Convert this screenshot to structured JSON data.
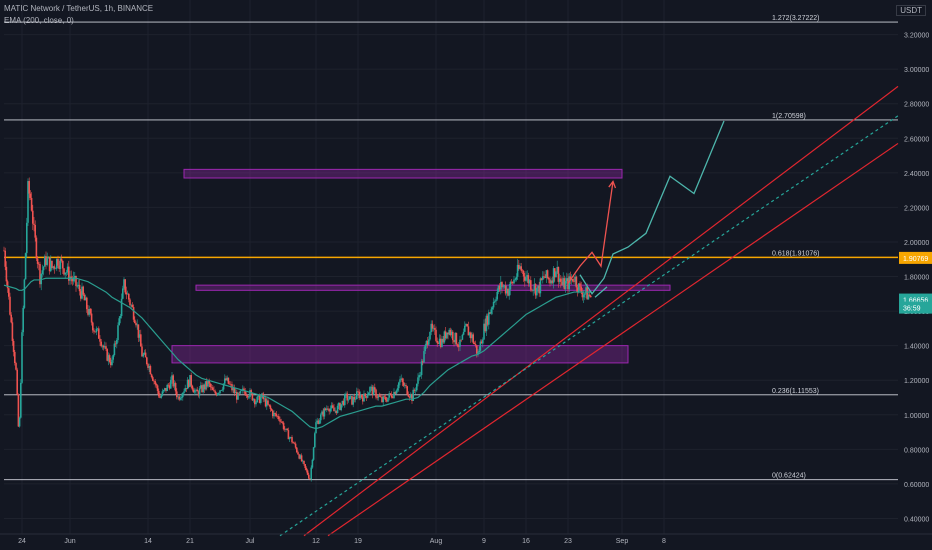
{
  "header": {
    "symbol": "MATIC Network / TetherUS, 1h, BINANCE",
    "indicator": "EMA (200, close, 0)",
    "currency": "USDT"
  },
  "colors": {
    "background": "#131722",
    "grid": "#1e222d",
    "axis_text": "#b2b5be",
    "candle_up": "#26a69a",
    "candle_down": "#ef5350",
    "ema": "#2a9d8f",
    "fib_line": "#d1d4dc",
    "golden_line": "#f7a600",
    "channel": "#e0262f",
    "channel_mid": "#26a69a",
    "zone": "#9c27b0",
    "projection_up": "#ef5350",
    "projection_alt": "#4db6ac"
  },
  "chart_data": {
    "type": "candlestick",
    "title": "MATIC Network / TetherUS, 1h, BINANCE",
    "x_axis": {
      "ticks": [
        {
          "label": "24",
          "day": 0
        },
        {
          "label": "Jun",
          "day": 8
        },
        {
          "label": "14",
          "day": 21
        },
        {
          "label": "21",
          "day": 28
        },
        {
          "label": "Jul",
          "day": 38
        },
        {
          "label": "12",
          "day": 49
        },
        {
          "label": "19",
          "day": 56
        },
        {
          "label": "Aug",
          "day": 69
        },
        {
          "label": "9",
          "day": 77
        },
        {
          "label": "16",
          "day": 84
        },
        {
          "label": "23",
          "day": 91
        },
        {
          "label": "Sep",
          "day": 100
        },
        {
          "label": "8",
          "day": 107
        }
      ],
      "range_days": [
        -3,
        146
      ]
    },
    "y_axis": {
      "range": [
        0.31,
        3.4
      ],
      "ticks": [
        {
          "value": 0.4,
          "label": "0.40000"
        },
        {
          "value": 0.6,
          "label": "0.60000"
        },
        {
          "value": 0.8,
          "label": "0.80000"
        },
        {
          "value": 1.0,
          "label": "1.00000"
        },
        {
          "value": 1.2,
          "label": "1.20000"
        },
        {
          "value": 1.4,
          "label": "1.40000"
        },
        {
          "value": 1.6,
          "label": "1.60000"
        },
        {
          "value": 1.8,
          "label": "1.80000"
        },
        {
          "value": 2.0,
          "label": "2.00000"
        },
        {
          "value": 2.2,
          "label": "2.20000"
        },
        {
          "value": 2.4,
          "label": "2.40000"
        },
        {
          "value": 2.6,
          "label": "2.60000"
        },
        {
          "value": 2.8,
          "label": "2.80000"
        },
        {
          "value": 3.0,
          "label": "3.00000"
        },
        {
          "value": 3.2,
          "label": "3.20000"
        }
      ],
      "price_labels": [
        {
          "value": 1.90769,
          "label": "1.90769",
          "color": "#f7a600"
        },
        {
          "value": 1.66656,
          "label": "1.66656",
          "color": "#26a69a"
        },
        {
          "value": 1.62,
          "label": "36:59",
          "color": "#26a69a"
        }
      ]
    },
    "fib_levels": [
      {
        "label": "1.272(3.27222)",
        "value": 3.27222
      },
      {
        "label": "1(2.70598)",
        "value": 2.70598
      },
      {
        "label": "0.618(1.91076)",
        "value": 1.91076,
        "highlight": true
      },
      {
        "label": "0.236(1.11553)",
        "value": 1.11553
      },
      {
        "label": "0(0.62424)",
        "value": 0.62424
      }
    ],
    "zones": [
      {
        "day_start": 27,
        "day_end": 100,
        "low": 2.37,
        "high": 2.42
      },
      {
        "day_start": 29,
        "day_end": 108,
        "low": 1.72,
        "high": 1.75
      },
      {
        "day_start": 25,
        "day_end": 101,
        "low": 1.3,
        "high": 1.4
      }
    ],
    "channel": {
      "upper": [
        [
          47,
          0.3
        ],
        [
          146,
          2.9
        ]
      ],
      "lower": [
        [
          51,
          0.3
        ],
        [
          146,
          2.57
        ]
      ],
      "middle": [
        [
          43,
          0.3
        ],
        [
          146,
          2.73
        ]
      ]
    },
    "projections": [
      {
        "name": "up",
        "points": [
          [
            91,
            1.76
          ],
          [
            93,
            1.86
          ],
          [
            95,
            1.94
          ],
          [
            96.5,
            1.86
          ],
          [
            98.5,
            2.35
          ]
        ]
      },
      {
        "name": "alt",
        "points": [
          [
            93,
            1.81
          ],
          [
            95,
            1.7
          ],
          [
            97,
            1.79
          ],
          [
            98.5,
            1.93
          ],
          [
            101,
            1.97
          ],
          [
            104,
            2.05
          ],
          [
            108,
            2.38
          ],
          [
            112,
            2.28
          ],
          [
            117,
            2.7
          ]
        ]
      },
      {
        "name": "small",
        "points": [
          [
            95.5,
            1.68
          ],
          [
            97.5,
            1.74
          ]
        ]
      }
    ],
    "price_series": {
      "day": [
        -3,
        -2,
        -1,
        -0.5,
        0,
        0.5,
        1,
        1.5,
        2,
        3,
        4,
        5,
        6,
        7,
        8,
        9,
        10,
        11,
        12,
        13,
        14,
        15,
        16,
        17,
        18,
        19,
        20,
        21,
        22,
        23,
        24,
        25,
        26,
        27,
        28,
        29,
        30,
        31,
        32,
        33,
        34,
        35,
        36,
        37,
        38,
        39,
        40,
        41,
        42,
        43,
        44,
        45,
        46,
        47,
        48,
        49,
        50,
        51,
        52,
        53,
        54,
        55,
        56,
        57,
        58,
        59,
        60,
        61,
        62,
        63,
        64,
        65,
        66,
        67,
        68,
        69,
        70,
        71,
        72,
        73,
        74,
        75,
        76,
        77,
        78,
        79,
        80,
        81,
        82,
        83,
        84,
        85,
        86,
        87,
        88,
        89,
        90,
        91,
        92,
        93,
        94,
        95
      ],
      "close": [
        1.95,
        1.6,
        1.25,
        0.85,
        1.45,
        1.85,
        2.3,
        2.25,
        2.05,
        1.8,
        1.9,
        1.85,
        1.9,
        1.85,
        1.8,
        1.75,
        1.7,
        1.6,
        1.5,
        1.45,
        1.35,
        1.3,
        1.5,
        1.75,
        1.65,
        1.55,
        1.35,
        1.3,
        1.2,
        1.1,
        1.15,
        1.2,
        1.1,
        1.15,
        1.2,
        1.12,
        1.15,
        1.18,
        1.12,
        1.15,
        1.2,
        1.15,
        1.1,
        1.14,
        1.12,
        1.08,
        1.1,
        1.05,
        1.0,
        0.98,
        0.9,
        0.85,
        0.78,
        0.7,
        0.63,
        0.95,
        1.0,
        1.05,
        1.02,
        1.05,
        1.1,
        1.08,
        1.12,
        1.1,
        1.15,
        1.12,
        1.08,
        1.1,
        1.13,
        1.2,
        1.15,
        1.1,
        1.2,
        1.35,
        1.5,
        1.45,
        1.42,
        1.5,
        1.45,
        1.4,
        1.5,
        1.45,
        1.35,
        1.5,
        1.6,
        1.7,
        1.75,
        1.72,
        1.78,
        1.85,
        1.8,
        1.75,
        1.72,
        1.8,
        1.78,
        1.85,
        1.75,
        1.76,
        1.8,
        1.72,
        1.7,
        1.68
      ],
      "ema": [
        1.75,
        1.74,
        1.73,
        1.72,
        1.72,
        1.73,
        1.75,
        1.77,
        1.78,
        1.78,
        1.79,
        1.79,
        1.79,
        1.79,
        1.79,
        1.79,
        1.78,
        1.77,
        1.75,
        1.73,
        1.71,
        1.68,
        1.66,
        1.64,
        1.62,
        1.59,
        1.56,
        1.52,
        1.48,
        1.44,
        1.4,
        1.36,
        1.32,
        1.29,
        1.26,
        1.23,
        1.21,
        1.2,
        1.19,
        1.18,
        1.17,
        1.16,
        1.15,
        1.14,
        1.13,
        1.12,
        1.11,
        1.1,
        1.08,
        1.06,
        1.04,
        1.02,
        0.99,
        0.96,
        0.93,
        0.92,
        0.93,
        0.95,
        0.97,
        0.99,
        1.0,
        1.01,
        1.02,
        1.03,
        1.04,
        1.05,
        1.05,
        1.06,
        1.07,
        1.08,
        1.09,
        1.09,
        1.1,
        1.13,
        1.17,
        1.2,
        1.23,
        1.26,
        1.28,
        1.3,
        1.32,
        1.34,
        1.35,
        1.37,
        1.4,
        1.43,
        1.46,
        1.49,
        1.52,
        1.55,
        1.58,
        1.6,
        1.62,
        1.64,
        1.66,
        1.68,
        1.69,
        1.7,
        1.71,
        1.71,
        1.71,
        1.71
      ]
    }
  }
}
